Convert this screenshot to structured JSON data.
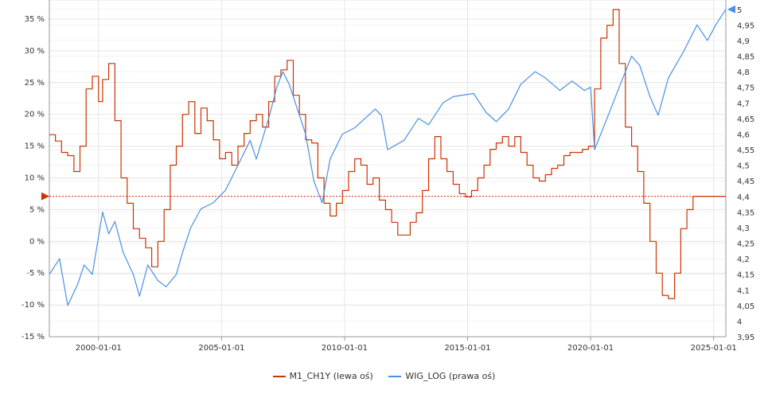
{
  "chart_data": {
    "type": "line",
    "title": "",
    "x_ticks": [
      "2000-01-01",
      "2005-01-01",
      "2010-01-01",
      "2015-01-01",
      "2020-01-01",
      "2025-01-01"
    ],
    "xlim": [
      "1998-01-01",
      "2025-07-01"
    ],
    "y_left": {
      "lim": [
        -15,
        38
      ],
      "ticks": [
        -15,
        -10,
        -5,
        0,
        5,
        10,
        15,
        20,
        25,
        30,
        35
      ],
      "tick_labels": [
        "-15 %",
        "-10 %",
        "-5 %",
        "0 %",
        "5 %",
        "10 %",
        "15 %",
        "20 %",
        "25 %",
        "30 %",
        "35 %"
      ]
    },
    "y_right": {
      "lim": [
        3.95,
        5.03
      ],
      "ticks": [
        3.95,
        4,
        4.05,
        4.1,
        4.15,
        4.2,
        4.25,
        4.3,
        4.35,
        4.4,
        4.45,
        4.5,
        4.55,
        4.6,
        4.65,
        4.7,
        4.75,
        4.8,
        4.85,
        4.9,
        4.95,
        5
      ],
      "tick_labels": [
        "3,95",
        "4",
        "4,05",
        "4,1",
        "4,15",
        "4,2",
        "4,25",
        "4,3",
        "4,35",
        "4,4",
        "4,45",
        "4,5",
        "4,55",
        "4,6",
        "4,65",
        "4,7",
        "4,75",
        "4,8",
        "4,85",
        "4,9",
        "4,95",
        "5"
      ]
    },
    "grid": true,
    "legend_position": "bottom",
    "series": [
      {
        "name": "M1_CH1Y (lewa oś)",
        "axis": "left",
        "color": "#cc3300",
        "step": true,
        "last_value": 7.1,
        "points": [
          [
            "1998-01-01",
            16.8
          ],
          [
            "1998-04-01",
            15.8
          ],
          [
            "1998-07-01",
            14.0
          ],
          [
            "1998-10-01",
            13.5
          ],
          [
            "1999-01-01",
            11.0
          ],
          [
            "1999-04-01",
            15.0
          ],
          [
            "1999-07-01",
            24.0
          ],
          [
            "1999-10-01",
            26.0
          ],
          [
            "2000-01-01",
            22.0
          ],
          [
            "2000-03-01",
            25.5
          ],
          [
            "2000-06-01",
            28.0
          ],
          [
            "2000-09-01",
            19.0
          ],
          [
            "2000-12-01",
            10.0
          ],
          [
            "2001-03-01",
            6.0
          ],
          [
            "2001-06-01",
            2.0
          ],
          [
            "2001-09-01",
            0.5
          ],
          [
            "2001-12-01",
            -1.0
          ],
          [
            "2002-03-01",
            -4.0
          ],
          [
            "2002-06-01",
            0.0
          ],
          [
            "2002-09-01",
            5.0
          ],
          [
            "2002-12-01",
            12.0
          ],
          [
            "2003-03-01",
            15.0
          ],
          [
            "2003-06-01",
            20.0
          ],
          [
            "2003-09-01",
            22.0
          ],
          [
            "2003-12-01",
            17.0
          ],
          [
            "2004-03-01",
            21.0
          ],
          [
            "2004-06-01",
            19.0
          ],
          [
            "2004-09-01",
            16.0
          ],
          [
            "2004-12-01",
            13.0
          ],
          [
            "2005-03-01",
            14.0
          ],
          [
            "2005-06-01",
            12.0
          ],
          [
            "2005-09-01",
            15.0
          ],
          [
            "2005-12-01",
            17.0
          ],
          [
            "2006-03-01",
            19.0
          ],
          [
            "2006-06-01",
            20.0
          ],
          [
            "2006-09-01",
            18.0
          ],
          [
            "2006-12-01",
            22.0
          ],
          [
            "2007-03-01",
            26.0
          ],
          [
            "2007-06-01",
            27.0
          ],
          [
            "2007-09-01",
            28.5
          ],
          [
            "2007-12-01",
            23.0
          ],
          [
            "2008-03-01",
            20.0
          ],
          [
            "2008-06-01",
            16.0
          ],
          [
            "2008-09-01",
            15.5
          ],
          [
            "2008-12-01",
            10.0
          ],
          [
            "2009-03-01",
            6.0
          ],
          [
            "2009-06-01",
            4.0
          ],
          [
            "2009-09-01",
            6.0
          ],
          [
            "2009-12-01",
            8.0
          ],
          [
            "2010-03-01",
            11.0
          ],
          [
            "2010-06-01",
            13.0
          ],
          [
            "2010-09-01",
            12.0
          ],
          [
            "2010-12-01",
            9.0
          ],
          [
            "2011-03-01",
            10.0
          ],
          [
            "2011-06-01",
            6.5
          ],
          [
            "2011-09-01",
            5.0
          ],
          [
            "2011-12-01",
            3.0
          ],
          [
            "2012-03-01",
            1.0
          ],
          [
            "2012-06-01",
            1.0
          ],
          [
            "2012-09-01",
            3.0
          ],
          [
            "2012-12-01",
            4.5
          ],
          [
            "2013-03-01",
            8.0
          ],
          [
            "2013-06-01",
            13.0
          ],
          [
            "2013-09-01",
            16.5
          ],
          [
            "2013-12-01",
            13.0
          ],
          [
            "2014-03-01",
            11.0
          ],
          [
            "2014-06-01",
            9.0
          ],
          [
            "2014-09-01",
            7.5
          ],
          [
            "2014-12-01",
            7.0
          ],
          [
            "2015-03-01",
            8.0
          ],
          [
            "2015-06-01",
            10.0
          ],
          [
            "2015-09-01",
            12.0
          ],
          [
            "2015-12-01",
            14.5
          ],
          [
            "2016-03-01",
            15.5
          ],
          [
            "2016-06-01",
            16.5
          ],
          [
            "2016-09-01",
            15.0
          ],
          [
            "2016-12-01",
            16.5
          ],
          [
            "2017-03-01",
            14.0
          ],
          [
            "2017-06-01",
            12.0
          ],
          [
            "2017-09-01",
            10.0
          ],
          [
            "2017-12-01",
            9.5
          ],
          [
            "2018-03-01",
            10.5
          ],
          [
            "2018-06-01",
            11.5
          ],
          [
            "2018-09-01",
            12.0
          ],
          [
            "2018-12-01",
            13.5
          ],
          [
            "2019-03-01",
            14.0
          ],
          [
            "2019-06-01",
            14.0
          ],
          [
            "2019-09-01",
            14.5
          ],
          [
            "2019-12-01",
            15.0
          ],
          [
            "2020-03-01",
            24.0
          ],
          [
            "2020-06-01",
            32.0
          ],
          [
            "2020-09-01",
            34.0
          ],
          [
            "2020-12-01",
            36.5
          ],
          [
            "2021-03-01",
            28.0
          ],
          [
            "2021-06-01",
            18.0
          ],
          [
            "2021-09-01",
            15.0
          ],
          [
            "2021-12-01",
            11.0
          ],
          [
            "2022-03-01",
            6.0
          ],
          [
            "2022-06-01",
            0.0
          ],
          [
            "2022-09-01",
            -5.0
          ],
          [
            "2022-12-01",
            -8.5
          ],
          [
            "2023-03-01",
            -9.0
          ],
          [
            "2023-06-01",
            -5.0
          ],
          [
            "2023-09-01",
            2.0
          ],
          [
            "2023-12-01",
            5.0
          ],
          [
            "2024-03-01",
            7.1
          ],
          [
            "2025-07-01",
            7.1
          ]
        ]
      },
      {
        "name": "WIG_LOG (prawa oś)",
        "axis": "right",
        "color": "#4a90e2",
        "step": false,
        "last_value": 5.0,
        "points": [
          [
            "1998-01-01",
            4.15
          ],
          [
            "1998-06-01",
            4.2
          ],
          [
            "1998-10-01",
            4.05
          ],
          [
            "1999-03-01",
            4.12
          ],
          [
            "1999-06-01",
            4.18
          ],
          [
            "1999-10-01",
            4.15
          ],
          [
            "2000-03-01",
            4.35
          ],
          [
            "2000-06-01",
            4.28
          ],
          [
            "2000-09-01",
            4.32
          ],
          [
            "2001-01-01",
            4.22
          ],
          [
            "2001-06-01",
            4.15
          ],
          [
            "2001-09-01",
            4.08
          ],
          [
            "2002-01-01",
            4.18
          ],
          [
            "2002-06-01",
            4.13
          ],
          [
            "2002-10-01",
            4.11
          ],
          [
            "2003-03-01",
            4.15
          ],
          [
            "2003-06-01",
            4.22
          ],
          [
            "2003-10-01",
            4.3
          ],
          [
            "2004-03-01",
            4.36
          ],
          [
            "2004-09-01",
            4.38
          ],
          [
            "2005-03-01",
            4.42
          ],
          [
            "2005-09-01",
            4.5
          ],
          [
            "2006-03-01",
            4.58
          ],
          [
            "2006-06-01",
            4.52
          ],
          [
            "2006-12-01",
            4.65
          ],
          [
            "2007-04-01",
            4.75
          ],
          [
            "2007-07-01",
            4.8
          ],
          [
            "2007-10-01",
            4.76
          ],
          [
            "2008-01-01",
            4.7
          ],
          [
            "2008-06-01",
            4.6
          ],
          [
            "2008-10-01",
            4.45
          ],
          [
            "2009-02-01",
            4.38
          ],
          [
            "2009-06-01",
            4.52
          ],
          [
            "2009-12-01",
            4.6
          ],
          [
            "2010-06-01",
            4.62
          ],
          [
            "2011-04-01",
            4.68
          ],
          [
            "2011-07-01",
            4.66
          ],
          [
            "2011-10-01",
            4.55
          ],
          [
            "2012-06-01",
            4.58
          ],
          [
            "2013-01-01",
            4.65
          ],
          [
            "2013-06-01",
            4.63
          ],
          [
            "2014-01-01",
            4.7
          ],
          [
            "2014-06-01",
            4.72
          ],
          [
            "2015-04-01",
            4.73
          ],
          [
            "2015-10-01",
            4.67
          ],
          [
            "2016-03-01",
            4.64
          ],
          [
            "2016-09-01",
            4.68
          ],
          [
            "2017-03-01",
            4.76
          ],
          [
            "2017-10-01",
            4.8
          ],
          [
            "2018-03-01",
            4.78
          ],
          [
            "2018-10-01",
            4.74
          ],
          [
            "2019-04-01",
            4.77
          ],
          [
            "2019-10-01",
            4.74
          ],
          [
            "2020-01-01",
            4.75
          ],
          [
            "2020-03-01",
            4.55
          ],
          [
            "2020-09-01",
            4.65
          ],
          [
            "2021-03-01",
            4.75
          ],
          [
            "2021-09-01",
            4.85
          ],
          [
            "2022-01-01",
            4.82
          ],
          [
            "2022-06-01",
            4.72
          ],
          [
            "2022-10-01",
            4.66
          ],
          [
            "2023-03-01",
            4.78
          ],
          [
            "2023-10-01",
            4.86
          ],
          [
            "2024-05-01",
            4.95
          ],
          [
            "2024-10-01",
            4.9
          ],
          [
            "2025-02-01",
            4.95
          ],
          [
            "2025-07-01",
            5.0
          ]
        ]
      }
    ]
  }
}
